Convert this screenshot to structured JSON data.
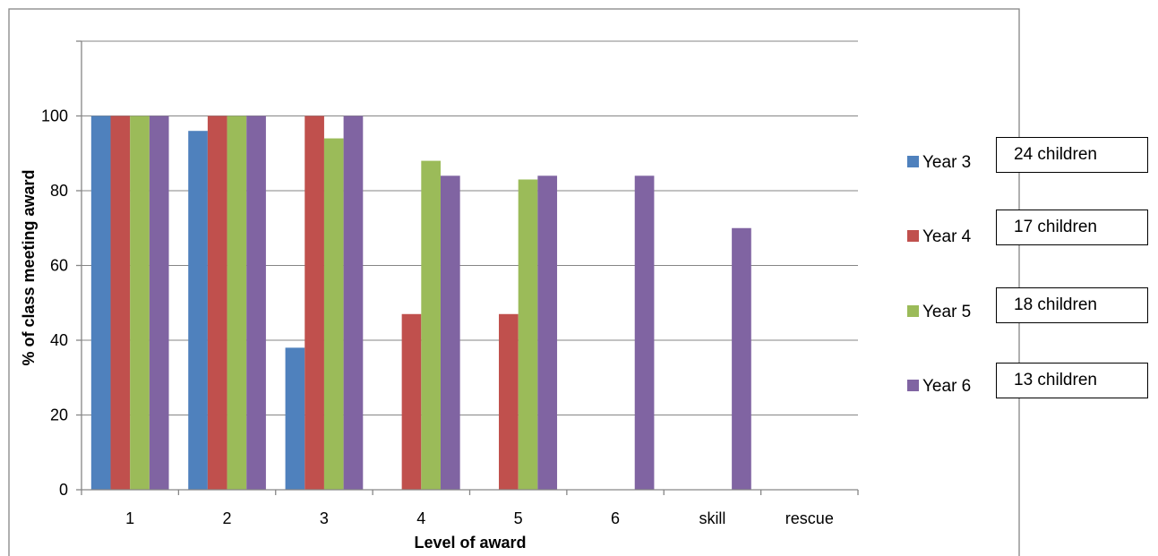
{
  "chart_data": {
    "type": "bar",
    "title": "",
    "xlabel": "Level of award",
    "ylabel": "% of class meeting award",
    "categories": [
      "1",
      "2",
      "3",
      "4",
      "5",
      "6",
      "skill",
      "rescue"
    ],
    "ylim": [
      0,
      120
    ],
    "yticks": [
      "0",
      "20",
      "40",
      "60",
      "80",
      "100"
    ],
    "grid": true,
    "legend_position": "right",
    "series": [
      {
        "name": "Year 3",
        "color": "#4F81BD",
        "values": [
          100,
          96,
          38,
          0,
          0,
          0,
          0,
          0
        ]
      },
      {
        "name": "Year 4",
        "color": "#C0504D",
        "values": [
          100,
          100,
          100,
          47,
          47,
          0,
          0,
          0
        ]
      },
      {
        "name": "Year 5",
        "color": "#9BBB59",
        "values": [
          100,
          100,
          94,
          88,
          83,
          0,
          0,
          0
        ]
      },
      {
        "name": "Year 6",
        "color": "#8064A2",
        "values": [
          100,
          100,
          100,
          84,
          84,
          84,
          70,
          0
        ]
      }
    ],
    "annotations": [
      "24 children",
      "17 children",
      "18 children",
      "13 children"
    ]
  }
}
